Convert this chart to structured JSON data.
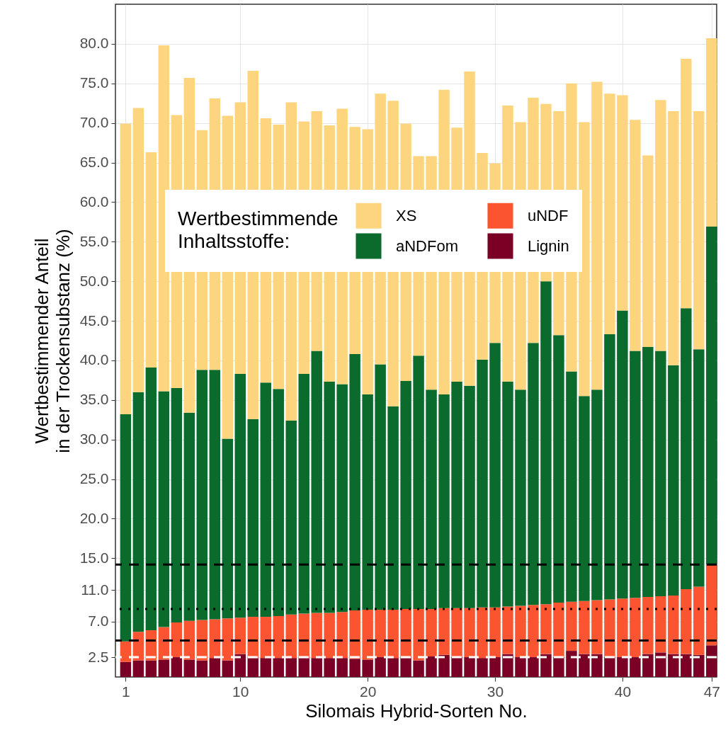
{
  "chart_data": {
    "type": "bar",
    "stacked": true,
    "xlabel": "Silomais Hybrid-Sorten No.",
    "ylabel": "Wertbestimmender Anteil\nin der Trockensubstanz (%)",
    "legend_title": "Wertbestimmende\nInhaltsstoffe:",
    "x": [
      1,
      2,
      3,
      4,
      5,
      6,
      7,
      8,
      9,
      10,
      11,
      12,
      13,
      14,
      15,
      16,
      17,
      18,
      19,
      20,
      21,
      22,
      23,
      24,
      25,
      26,
      27,
      28,
      29,
      30,
      31,
      32,
      33,
      34,
      35,
      36,
      37,
      38,
      39,
      40,
      41,
      42,
      43,
      44,
      45,
      46,
      47
    ],
    "xlim": [
      0.2,
      47.4
    ],
    "xticks": [
      1,
      10,
      20,
      30,
      40,
      47
    ],
    "ylim": [
      0,
      85
    ],
    "yticks": [
      {
        "value": 2.5,
        "label": "2.5"
      },
      {
        "value": 7,
        "label": "7.0"
      },
      {
        "value": 11,
        "label": "11.0"
      },
      {
        "value": 15,
        "label": "15.0"
      },
      {
        "value": 20,
        "label": "20.0"
      },
      {
        "value": 25,
        "label": "25.0"
      },
      {
        "value": 30,
        "label": "30.0"
      },
      {
        "value": 35,
        "label": "35.0"
      },
      {
        "value": 40,
        "label": "40.0"
      },
      {
        "value": 45,
        "label": "45.0"
      },
      {
        "value": 50,
        "label": "50.0"
      },
      {
        "value": 55,
        "label": "55.0"
      },
      {
        "value": 60,
        "label": "60.0"
      },
      {
        "value": 65,
        "label": "65.0"
      },
      {
        "value": 70,
        "label": "70.0"
      },
      {
        "value": 75,
        "label": "75.0"
      },
      {
        "value": 80,
        "label": "80.0"
      }
    ],
    "grid": true,
    "legend": "top",
    "series": [
      {
        "name": "Lignin",
        "color": "#7a0026",
        "values": [
          1.9,
          2.1,
          2.1,
          2.2,
          2.5,
          2.2,
          2.1,
          2.4,
          2.1,
          2.9,
          2.4,
          2.4,
          2.4,
          2.4,
          2.4,
          2.4,
          2.4,
          2.4,
          2.3,
          2.2,
          2.5,
          2.4,
          2.4,
          2.1,
          2.6,
          2.8,
          2.5,
          2.5,
          2.4,
          2.5,
          2.9,
          2.5,
          2.5,
          2.9,
          2.5,
          3.3,
          2.9,
          2.9,
          2.5,
          2.5,
          2.5,
          2.9,
          3.1,
          2.9,
          2.9,
          2.8,
          4.0
        ]
      },
      {
        "name": "uNDF",
        "color": "#fa5430",
        "values": [
          2.6,
          3.6,
          3.8,
          4.1,
          4.4,
          4.9,
          5.1,
          4.9,
          5.3,
          4.6,
          5.2,
          5.2,
          5.3,
          5.5,
          5.6,
          5.7,
          5.7,
          5.8,
          6.1,
          6.3,
          6.0,
          6.1,
          6.2,
          6.5,
          6.0,
          5.9,
          6.2,
          6.2,
          6.4,
          6.3,
          6.0,
          6.5,
          6.6,
          6.3,
          6.9,
          6.2,
          6.7,
          6.8,
          7.3,
          7.4,
          7.5,
          7.2,
          7.1,
          7.4,
          8.2,
          8.6,
          10.2
        ]
      },
      {
        "name": "aNDFom",
        "color": "#0b6b2c",
        "values": [
          28.7,
          30.3,
          33.2,
          29.8,
          29.6,
          26.3,
          31.6,
          31.5,
          22.7,
          30.8,
          25.0,
          29.6,
          28.7,
          24.5,
          30.3,
          33.1,
          29.2,
          28.8,
          32.4,
          27.2,
          31.0,
          25.7,
          28.8,
          32.0,
          27.7,
          27.0,
          28.6,
          28.1,
          31.3,
          33.4,
          28.4,
          27.3,
          33.1,
          40.8,
          33.8,
          29.1,
          25.9,
          26.6,
          33.5,
          36.4,
          31.2,
          31.6,
          31.0,
          29.1,
          35.5,
          30.0,
          42.7
        ]
      },
      {
        "name": "XS",
        "color": "#fdd57e",
        "values": [
          36.7,
          35.9,
          27.2,
          43.7,
          34.5,
          42.3,
          30.3,
          34.3,
          40.8,
          34.3,
          44.0,
          33.4,
          33.4,
          40.2,
          31.9,
          30.3,
          32.4,
          34.8,
          28.7,
          33.5,
          34.2,
          38.6,
          32.5,
          25.2,
          29.5,
          38.5,
          32.1,
          39.7,
          26.1,
          22.7,
          34.9,
          33.8,
          31.0,
          22.4,
          28.3,
          36.4,
          34.6,
          38.9,
          30.4,
          27.2,
          29.2,
          24.2,
          31.7,
          32.1,
          31.5,
          30.1,
          23.8
        ]
      }
    ],
    "ref_lines": [
      {
        "axis": "y",
        "value": 14.2,
        "color": "#000000",
        "line_style": "dashed"
      },
      {
        "axis": "y",
        "value": 8.6,
        "color": "#000000",
        "line_style": "dotted"
      },
      {
        "axis": "y",
        "value": 4.6,
        "color": "#000000",
        "line_style": "dashed"
      },
      {
        "axis": "y",
        "value": 2.5,
        "color": "#ffffff",
        "line_style": "dashed"
      }
    ]
  }
}
